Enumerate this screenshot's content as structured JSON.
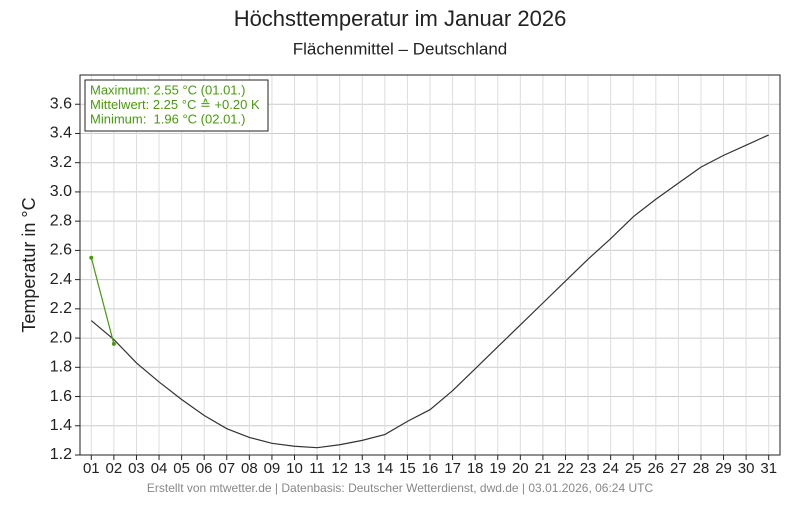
{
  "chart_data": {
    "type": "line",
    "title": "Höchsttemperatur im Januar 2026",
    "subtitle": "Flächenmittel – Deutschland",
    "ylabel": "Temperatur in °C",
    "footer": "Erstellt von mtwetter.de | Datenbasis: Deutscher Wetterdienst, dwd.de | 03.01.2026, 06:24 UTC",
    "annotations": [
      "Maximum: 2.55 °C (01.01.)",
      "Mittelwert: 2.25 °C ≙ +0.20 K",
      "Minimum:  1.96 °C (02.01.)"
    ],
    "annotation_color": "#4a9a10",
    "x": [
      1,
      2,
      3,
      4,
      5,
      6,
      7,
      8,
      9,
      10,
      11,
      12,
      13,
      14,
      15,
      16,
      17,
      18,
      19,
      20,
      21,
      22,
      23,
      24,
      25,
      26,
      27,
      28,
      29,
      30,
      31
    ],
    "xlim": [
      0.5,
      31.5
    ],
    "xticks": [
      {
        "value": 1,
        "label": "01"
      },
      {
        "value": 2,
        "label": "02"
      },
      {
        "value": 3,
        "label": "03"
      },
      {
        "value": 4,
        "label": "04"
      },
      {
        "value": 5,
        "label": "05"
      },
      {
        "value": 6,
        "label": "06"
      },
      {
        "value": 7,
        "label": "07"
      },
      {
        "value": 8,
        "label": "08"
      },
      {
        "value": 9,
        "label": "09"
      },
      10,
      11,
      12,
      13,
      14,
      15,
      16,
      17,
      18,
      19,
      20,
      21,
      22,
      23,
      24,
      25,
      26,
      27,
      28,
      29,
      30,
      31
    ],
    "ylim": [
      1.2,
      3.8
    ],
    "yticks": [
      1.2,
      1.4,
      1.6,
      1.8,
      {
        "value": 2,
        "label": "2.0"
      },
      2.2,
      2.4,
      2.6,
      2.8,
      {
        "value": 3,
        "label": "3.0"
      },
      3.2,
      3.4,
      3.6
    ],
    "grid": true,
    "series": [
      {
        "color": "#333333",
        "values": [
          2.12,
          1.99,
          1.83,
          1.7,
          1.58,
          1.47,
          1.38,
          1.32,
          1.28,
          1.26,
          1.25,
          1.27,
          1.3,
          1.34,
          1.43,
          1.51,
          1.64,
          1.79,
          1.94,
          2.09,
          2.24,
          2.39,
          2.54,
          2.68,
          2.83,
          2.95,
          3.06,
          3.17,
          3.25,
          3.32,
          3.39
        ]
      },
      {
        "color": "#4a9a10",
        "markers": true,
        "values": [
          2.55,
          1.96,
          null,
          null,
          null,
          null,
          null,
          null,
          null,
          null,
          null,
          null,
          null,
          null,
          null,
          null,
          null,
          null,
          null,
          null,
          null,
          null,
          null,
          null,
          null,
          null,
          null,
          null,
          null,
          null,
          null
        ]
      }
    ]
  }
}
